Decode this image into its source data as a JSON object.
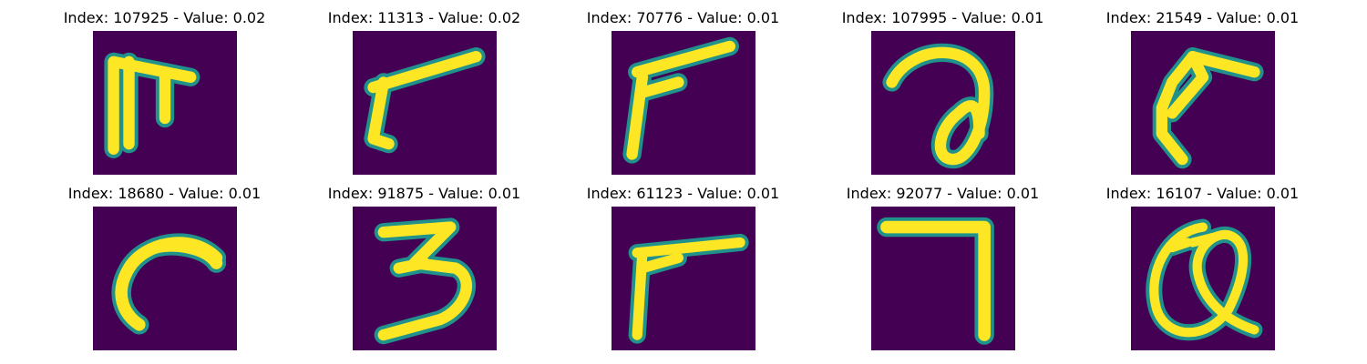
{
  "figure": {
    "panels": [
      {
        "title": "Index: 107925 - Value: 0.02",
        "index": 107925,
        "value": 0.02,
        "glyph": "tilted T-like shape"
      },
      {
        "title": "Index: 11313 - Value: 0.02",
        "index": 11313,
        "value": 0.02,
        "glyph": "r-like stroke"
      },
      {
        "title": "Index: 70776 - Value: 0.01",
        "index": 70776,
        "value": 0.01,
        "glyph": "r-like stroke"
      },
      {
        "title": "Index: 107995 - Value: 0.01",
        "index": 107995,
        "value": 0.01,
        "glyph": "loop stroke"
      },
      {
        "title": "Index: 21549 - Value: 0.01",
        "index": 21549,
        "value": 0.01,
        "glyph": "curved hook"
      },
      {
        "title": "Index: 18680 - Value: 0.01",
        "index": 18680,
        "value": 0.01,
        "glyph": "c-like curve"
      },
      {
        "title": "Index: 91875 - Value: 0.01",
        "index": 91875,
        "value": 0.01,
        "glyph": "digit 3"
      },
      {
        "title": "Index: 61123 - Value: 0.01",
        "index": 61123,
        "value": 0.01,
        "glyph": "r-like stroke"
      },
      {
        "title": "Index: 92077 - Value: 0.01",
        "index": 92077,
        "value": 0.01,
        "glyph": "digit 7"
      },
      {
        "title": "Index: 16107 - Value: 0.01",
        "index": 16107,
        "value": 0.01,
        "glyph": "at-sign-like loop"
      }
    ]
  },
  "colors": {
    "background": "#440154",
    "stroke_edge": "#21918c",
    "stroke_core": "#fde725",
    "text": "#000000"
  }
}
